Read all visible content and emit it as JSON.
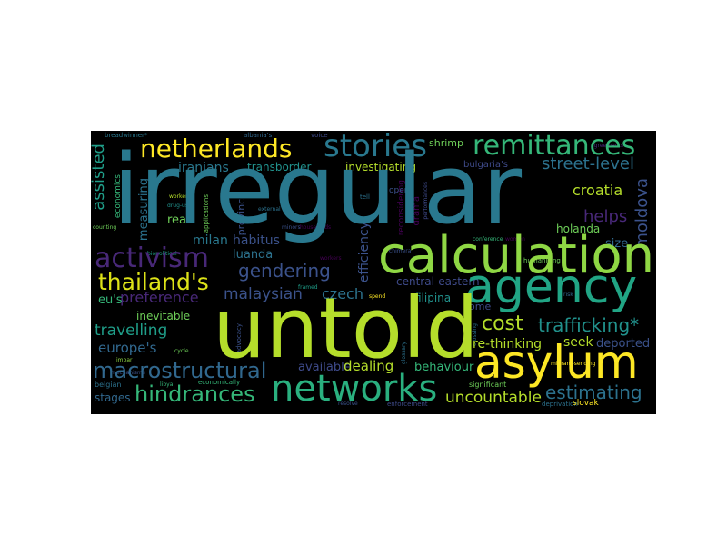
{
  "words": {
    "irregular": "irregular",
    "untold": "untold",
    "calculation": "calculation",
    "agency": "agency",
    "asylum": "asylum",
    "networks": "networks",
    "activism": "activism",
    "netherlands": "netherlands",
    "stories": "stories",
    "remittances": "remittances",
    "thailands": "thailand's",
    "macrostructural": "macrostructural",
    "hindrances": "hindrances",
    "cost": "cost",
    "trafficking": "trafficking*",
    "gendering": "gendering",
    "travelling": "travelling",
    "estimating": "estimating",
    "uncountable": "uncountable",
    "street_level": "street-level",
    "croatia": "croatia",
    "helps": "helps",
    "moldova": "moldova",
    "assisted": "assisted",
    "preference": "preference",
    "malaysian": "malaysian",
    "czech": "czech",
    "milan": "milan",
    "habitus": "habitus",
    "luanda": "luanda",
    "iranians": "iranians",
    "transborder": "transborder",
    "investigating": "investigating",
    "shrimp": "shrimp",
    "bulgarias": "bulgaria's",
    "europes": "europe's",
    "eus": "eu's",
    "inevitable": "inevitable",
    "available": "available",
    "dealing": "dealing",
    "behaviour": "behaviour",
    "re_thinking": "re-thinking",
    "seek": "seek",
    "deported": "deported",
    "stages": "stages",
    "come": "come",
    "filipina": "filipina",
    "central_eastern": "central-eastern",
    "holanda": "holanda",
    "size": "size",
    "efficiency": "efficiency",
    "economics": "economics",
    "measuring": "measuring",
    "real": "real",
    "breadwinner": "breadwinner*",
    "albanias": "albania's",
    "voice": "voice",
    "province": "province",
    "drama": "drama",
    "humanising": "humanising",
    "reconsidering": "reconsidering",
    "open": "open",
    "slovak": "slovak",
    "enforcement": "enforcement",
    "deprivation": "deprivation",
    "significant": "significant",
    "migrant_sending": "migrant-sending",
    "agreements": "agreements",
    "biopolitical": "biopolitical",
    "counting": "counting",
    "worker": "worker",
    "drug_use": "drug-use",
    "applications": "applications",
    "external": "external",
    "minors": "minors",
    "households": "households",
    "workers": "workers",
    "framed": "framed",
    "libya": "libya",
    "belgian": "belgian",
    "cycle": "cycle",
    "advocacy": "advocacy",
    "economically": "economically",
    "spend": "spend",
    "resolve": "resolve",
    "conference": "conference",
    "women": "women",
    "performances": "performances",
    "mechanisms": "mechanisms",
    "chimera": "chimera",
    "tell": "tell",
    "glossary": "glossary",
    "imbar": "imbar",
    "risk": "risk",
    "flows": "flows",
    "crossing": "crossing",
    "inclusion": "inclusion",
    "italian": "italian",
    "suspect": "suspect",
    "wife": "wife",
    "spatial": "spatial",
    "stage": "stage",
    "sum": "sum",
    "anti": "anti"
  }
}
